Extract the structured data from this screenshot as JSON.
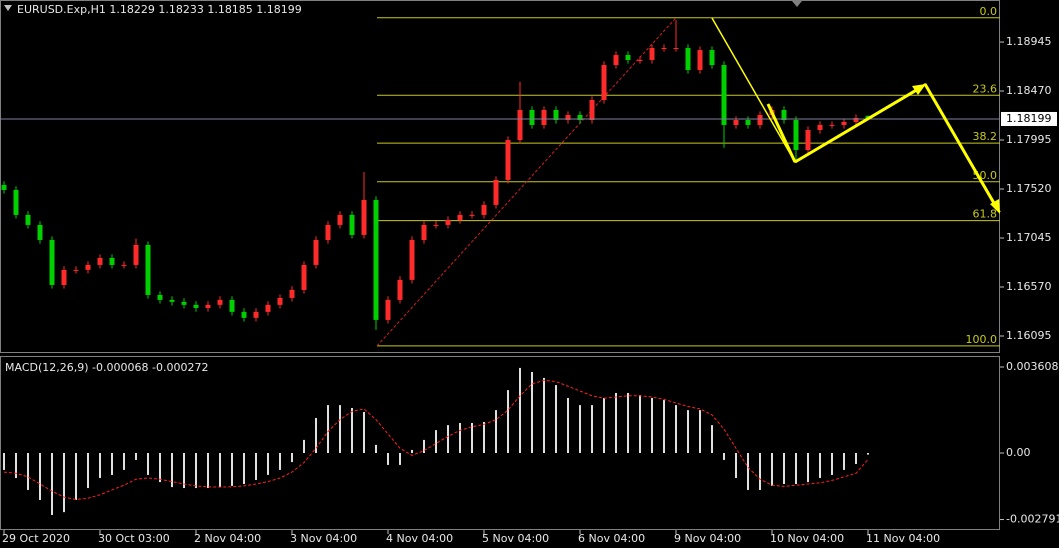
{
  "chart_data": [
    {
      "type": "candlestick",
      "title": "EURUSD.Exp,H1  1.18229 1.18233 1.18185 1.18199",
      "categories": [
        "29 Oct 2020",
        null,
        null,
        null,
        null,
        null,
        null,
        null,
        "30 Oct 03:00",
        null,
        null,
        null,
        null,
        null,
        null,
        null,
        "2 Nov 04:00",
        null,
        null,
        null,
        null,
        null,
        null,
        null,
        "3 Nov 04:00",
        null,
        null,
        null,
        null,
        null,
        null,
        null,
        "4 Nov 04:00",
        null,
        null,
        null,
        null,
        null,
        null,
        null,
        "5 Nov 04:00",
        null,
        null,
        null,
        null,
        null,
        null,
        null,
        "6 Nov 04:00",
        null,
        null,
        null,
        null,
        null,
        null,
        null,
        "9 Nov 04:00",
        null,
        null,
        null,
        null,
        null,
        null,
        null,
        "10 Nov 04:00",
        null,
        null,
        null,
        null,
        null,
        null,
        null,
        "11 Nov 04:00"
      ],
      "open": [
        1.1756,
        1.17511,
        1.17269,
        1.17172,
        1.17026,
        1.1659,
        1.16736,
        1.16736,
        1.16784,
        1.16852,
        1.16784,
        1.16784,
        1.16978,
        1.16493,
        1.16445,
        1.16426,
        1.16397,
        1.16367,
        1.16397,
        1.16445,
        1.16329,
        1.16271,
        1.16329,
        1.16397,
        1.16464,
        1.16542,
        1.16784,
        1.17026,
        1.17172,
        1.17269,
        1.17075,
        1.17414,
        1.16251,
        1.16445,
        1.16639,
        1.17026,
        1.17172,
        1.17172,
        1.1722,
        1.17269,
        1.17269,
        1.17366,
        1.17608,
        1.17995,
        1.18286,
        1.18141,
        1.18286,
        1.18189,
        1.18238,
        1.18189,
        1.18383,
        1.18722,
        1.18819,
        1.18771,
        1.18771,
        1.18887,
        1.18887,
        1.18887,
        1.18674,
        1.18867,
        1.18722,
        1.18141,
        1.18189,
        1.18141,
        1.18238,
        1.18286,
        1.18189,
        1.17898,
        1.18092,
        1.18141,
        1.18141,
        1.1817,
        1.18229
      ],
      "high": [
        1.17595,
        1.17546,
        1.17304,
        1.17207,
        1.17061,
        1.16771,
        1.16771,
        1.16819,
        1.16887,
        1.16887,
        1.16819,
        1.1704,
        1.17013,
        1.16528,
        1.1648,
        1.16461,
        1.16432,
        1.16432,
        1.1648,
        1.1648,
        1.16364,
        1.16364,
        1.16432,
        1.16499,
        1.16577,
        1.16819,
        1.17061,
        1.17207,
        1.17304,
        1.17304,
        1.17685,
        1.17449,
        1.1648,
        1.16674,
        1.17061,
        1.17207,
        1.17207,
        1.17255,
        1.17304,
        1.17304,
        1.17401,
        1.17643,
        1.1803,
        1.1856,
        1.18321,
        1.18321,
        1.18321,
        1.18273,
        1.18273,
        1.18418,
        1.18757,
        1.18854,
        1.18854,
        1.18806,
        1.18922,
        1.18922,
        1.19158,
        1.18922,
        1.18902,
        1.18902,
        1.18757,
        1.18224,
        1.18224,
        1.18273,
        1.18321,
        1.18321,
        1.18224,
        1.18127,
        1.18176,
        1.18176,
        1.18205,
        1.18244,
        1.18233
      ],
      "low": [
        1.17476,
        1.17234,
        1.17137,
        1.16991,
        1.16555,
        1.16555,
        1.16701,
        1.16701,
        1.16749,
        1.16749,
        1.16749,
        1.16749,
        1.16458,
        1.1641,
        1.16391,
        1.16362,
        1.16332,
        1.16332,
        1.16362,
        1.16294,
        1.16236,
        1.16236,
        1.16294,
        1.16362,
        1.16429,
        1.16507,
        1.16749,
        1.16991,
        1.17137,
        1.1704,
        1.1704,
        1.16154,
        1.16216,
        1.1641,
        1.16604,
        1.16991,
        1.17137,
        1.17137,
        1.17185,
        1.17234,
        1.17234,
        1.17331,
        1.17573,
        1.1796,
        1.18106,
        1.18106,
        1.18154,
        1.18154,
        1.18154,
        1.18154,
        1.18348,
        1.18687,
        1.18736,
        1.18736,
        1.18736,
        1.18852,
        1.18852,
        1.18639,
        1.18639,
        1.18687,
        1.1792,
        1.18106,
        1.18106,
        1.18106,
        1.18203,
        1.18154,
        1.1778,
        1.17863,
        1.18057,
        1.18106,
        1.18106,
        1.18135,
        1.18185
      ],
      "close": [
        1.17511,
        1.17269,
        1.17172,
        1.17026,
        1.1659,
        1.16736,
        1.16736,
        1.16784,
        1.16852,
        1.16784,
        1.16784,
        1.16978,
        1.16493,
        1.16445,
        1.16426,
        1.16397,
        1.16367,
        1.16397,
        1.16445,
        1.16329,
        1.16271,
        1.16329,
        1.16397,
        1.16464,
        1.16542,
        1.16784,
        1.17026,
        1.17172,
        1.17269,
        1.17075,
        1.17414,
        1.16251,
        1.16445,
        1.16639,
        1.17026,
        1.17172,
        1.17172,
        1.1722,
        1.17269,
        1.17269,
        1.17366,
        1.17608,
        1.17995,
        1.18286,
        1.18141,
        1.18286,
        1.18189,
        1.18238,
        1.18189,
        1.18383,
        1.18722,
        1.18819,
        1.18771,
        1.18771,
        1.18887,
        1.18887,
        1.18887,
        1.18674,
        1.18867,
        1.18722,
        1.18141,
        1.18189,
        1.18141,
        1.18238,
        1.18286,
        1.18189,
        1.17898,
        1.18092,
        1.18141,
        1.18141,
        1.1817,
        1.18209,
        1.18199
      ],
      "up_color": "#ff2a2a",
      "down_color": "#00d000",
      "ylim": [
        1.1594,
        1.19333
      ],
      "yticks": [
        {
          "value": 1.18945,
          "label": "1.18945"
        },
        {
          "value": 1.1847,
          "label": "1.18470"
        },
        {
          "value": 1.17995,
          "label": "1.17995"
        },
        {
          "value": 1.1752,
          "label": "1.17520"
        },
        {
          "value": 1.17045,
          "label": "1.17045"
        },
        {
          "value": 1.1657,
          "label": "1.16570"
        },
        {
          "value": 1.16095,
          "label": "1.16095"
        }
      ],
      "current_price": 1.18199,
      "fib_color": "#c8c820",
      "fib_levels": [
        {
          "value": 1.1918,
          "label": "0.0"
        },
        {
          "value": 1.18429,
          "label": "23.6"
        },
        {
          "value": 1.17965,
          "label": "38.2"
        },
        {
          "value": 1.1759,
          "label": "50.0"
        },
        {
          "value": 1.17214,
          "label": "61.8"
        },
        {
          "value": 1.15999,
          "label": "100.0"
        }
      ]
    },
    {
      "type": "macd",
      "title": "MACD(12,26,9) -0.000068 -0.000272",
      "histogram_color": "#e0e0e0",
      "signal_color": "#ff2020",
      "histogram": [
        -0.00071,
        -0.00105,
        -0.00155,
        -0.00197,
        -0.0026,
        -0.00248,
        -0.00197,
        -0.00147,
        -0.00105,
        -0.00092,
        -0.00071,
        -0.00029,
        -0.00092,
        -0.00122,
        -0.00143,
        -0.00147,
        -0.00147,
        -0.00147,
        -0.00143,
        -0.00138,
        -0.0013,
        -0.00113,
        -0.00092,
        -0.00071,
        -0.00038,
        0.00055,
        0.00147,
        0.00201,
        0.00201,
        0.00189,
        0.00172,
        0.00034,
        -0.0005,
        -0.0005,
        0.00013,
        0.00055,
        0.00096,
        0.00117,
        0.00126,
        0.00126,
        0.0013,
        0.0018,
        0.00264,
        0.00357,
        0.0034,
        0.00315,
        0.00285,
        0.00231,
        0.00201,
        0.00201,
        0.00231,
        0.00252,
        0.00252,
        0.00243,
        0.00231,
        0.00222,
        0.00201,
        0.0018,
        0.0018,
        0.00117,
        -0.00029,
        -0.00105,
        -0.00155,
        -0.00155,
        -0.00138,
        -0.0013,
        -0.0013,
        -0.00122,
        -0.00105,
        -0.00092,
        -0.00071,
        -0.00046,
        -6.8e-05
      ],
      "signal": [
        -0.0008,
        -0.00085,
        -0.001,
        -0.0013,
        -0.0016,
        -0.00185,
        -0.00195,
        -0.0019,
        -0.00175,
        -0.00155,
        -0.00135,
        -0.0011,
        -0.00105,
        -0.0011,
        -0.0012,
        -0.0013,
        -0.00138,
        -0.00142,
        -0.00143,
        -0.00142,
        -0.00138,
        -0.0013,
        -0.0012,
        -0.00105,
        -0.0008,
        -0.0004,
        0.0002,
        0.0009,
        0.0014,
        0.00175,
        0.00185,
        0.0014,
        0.0008,
        0.0002,
        -0.0001,
        0.0001,
        0.0004,
        0.0007,
        0.00095,
        0.0011,
        0.0012,
        0.0014,
        0.0018,
        0.0024,
        0.0029,
        0.00305,
        0.003,
        0.0028,
        0.0026,
        0.0024,
        0.0023,
        0.00235,
        0.0024,
        0.0024,
        0.00235,
        0.00225,
        0.0021,
        0.00195,
        0.00185,
        0.0016,
        0.001,
        0.0002,
        -0.0006,
        -0.0011,
        -0.00135,
        -0.0014,
        -0.00135,
        -0.0013,
        -0.00125,
        -0.00115,
        -0.001,
        -0.00085,
        -0.000272
      ],
      "ylim": [
        -0.00323,
        0.004028
      ],
      "yticks": [
        {
          "value": 0.003608,
          "label": "0.003608"
        },
        {
          "value": 0,
          "label": "0.00"
        },
        {
          "value": -0.002791,
          "label": "-0.002791"
        }
      ]
    }
  ]
}
